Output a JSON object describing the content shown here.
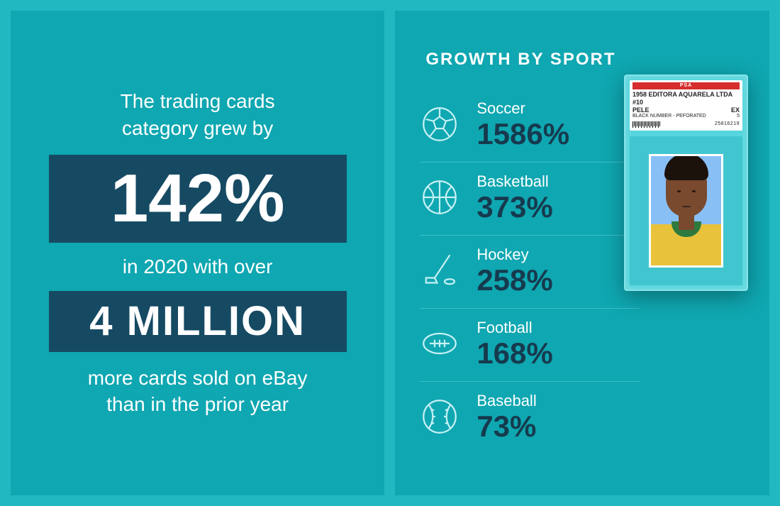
{
  "colors": {
    "page_bg": "#22b8c2",
    "panel_bg": "#0fa7b1",
    "stat_box_bg": "#164a63",
    "text_white": "#ffffff",
    "dark_navy": "#163a4e",
    "divider": "#3abfc8",
    "icon_stroke": "#c6f1f4",
    "card_slab": "#56d5dc",
    "card_slab_border": "#84e4ea",
    "psa_red": "#d62d2d",
    "card_mat": "#41c6cf",
    "photo_bg": "#88bff5",
    "jersey_yellow": "#e8c23a",
    "collar_green": "#2e7a3e",
    "skin": "#7a4a2f",
    "hair": "#1c120c"
  },
  "typography": {
    "intro_fontsize": 28,
    "stat_big_fontsize": 96,
    "stat_mid_fontsize": 58,
    "right_title_fontsize": 24,
    "sport_label_fontsize": 22,
    "sport_value_fontsize": 42
  },
  "left": {
    "intro_line1": "The trading cards",
    "intro_line2": "category grew by",
    "big_stat": "142%",
    "mid_text": "in 2020 with over",
    "mid_stat": "4 MILLION",
    "outro_line1": "more cards sold on eBay",
    "outro_line2": "than in the prior year"
  },
  "right": {
    "title": "GROWTH BY SPORT",
    "sports": [
      {
        "icon": "soccer",
        "label": "Soccer",
        "value": "1586%"
      },
      {
        "icon": "basketball",
        "label": "Basketball",
        "value": "373%"
      },
      {
        "icon": "hockey",
        "label": "Hockey",
        "value": "258%"
      },
      {
        "icon": "football",
        "label": "Football",
        "value": "168%"
      },
      {
        "icon": "baseball",
        "label": "Baseball",
        "value": "73%"
      }
    ],
    "card": {
      "psa_header": "PSA",
      "line1_left": "1958 EDITORA AQUARELA LTDA #10",
      "line2_left": "PELE",
      "line2_right": "EX",
      "line3_left": "BLACK NUMBER - PEFORATED",
      "line3_right": "5",
      "serial": "25816219"
    }
  }
}
